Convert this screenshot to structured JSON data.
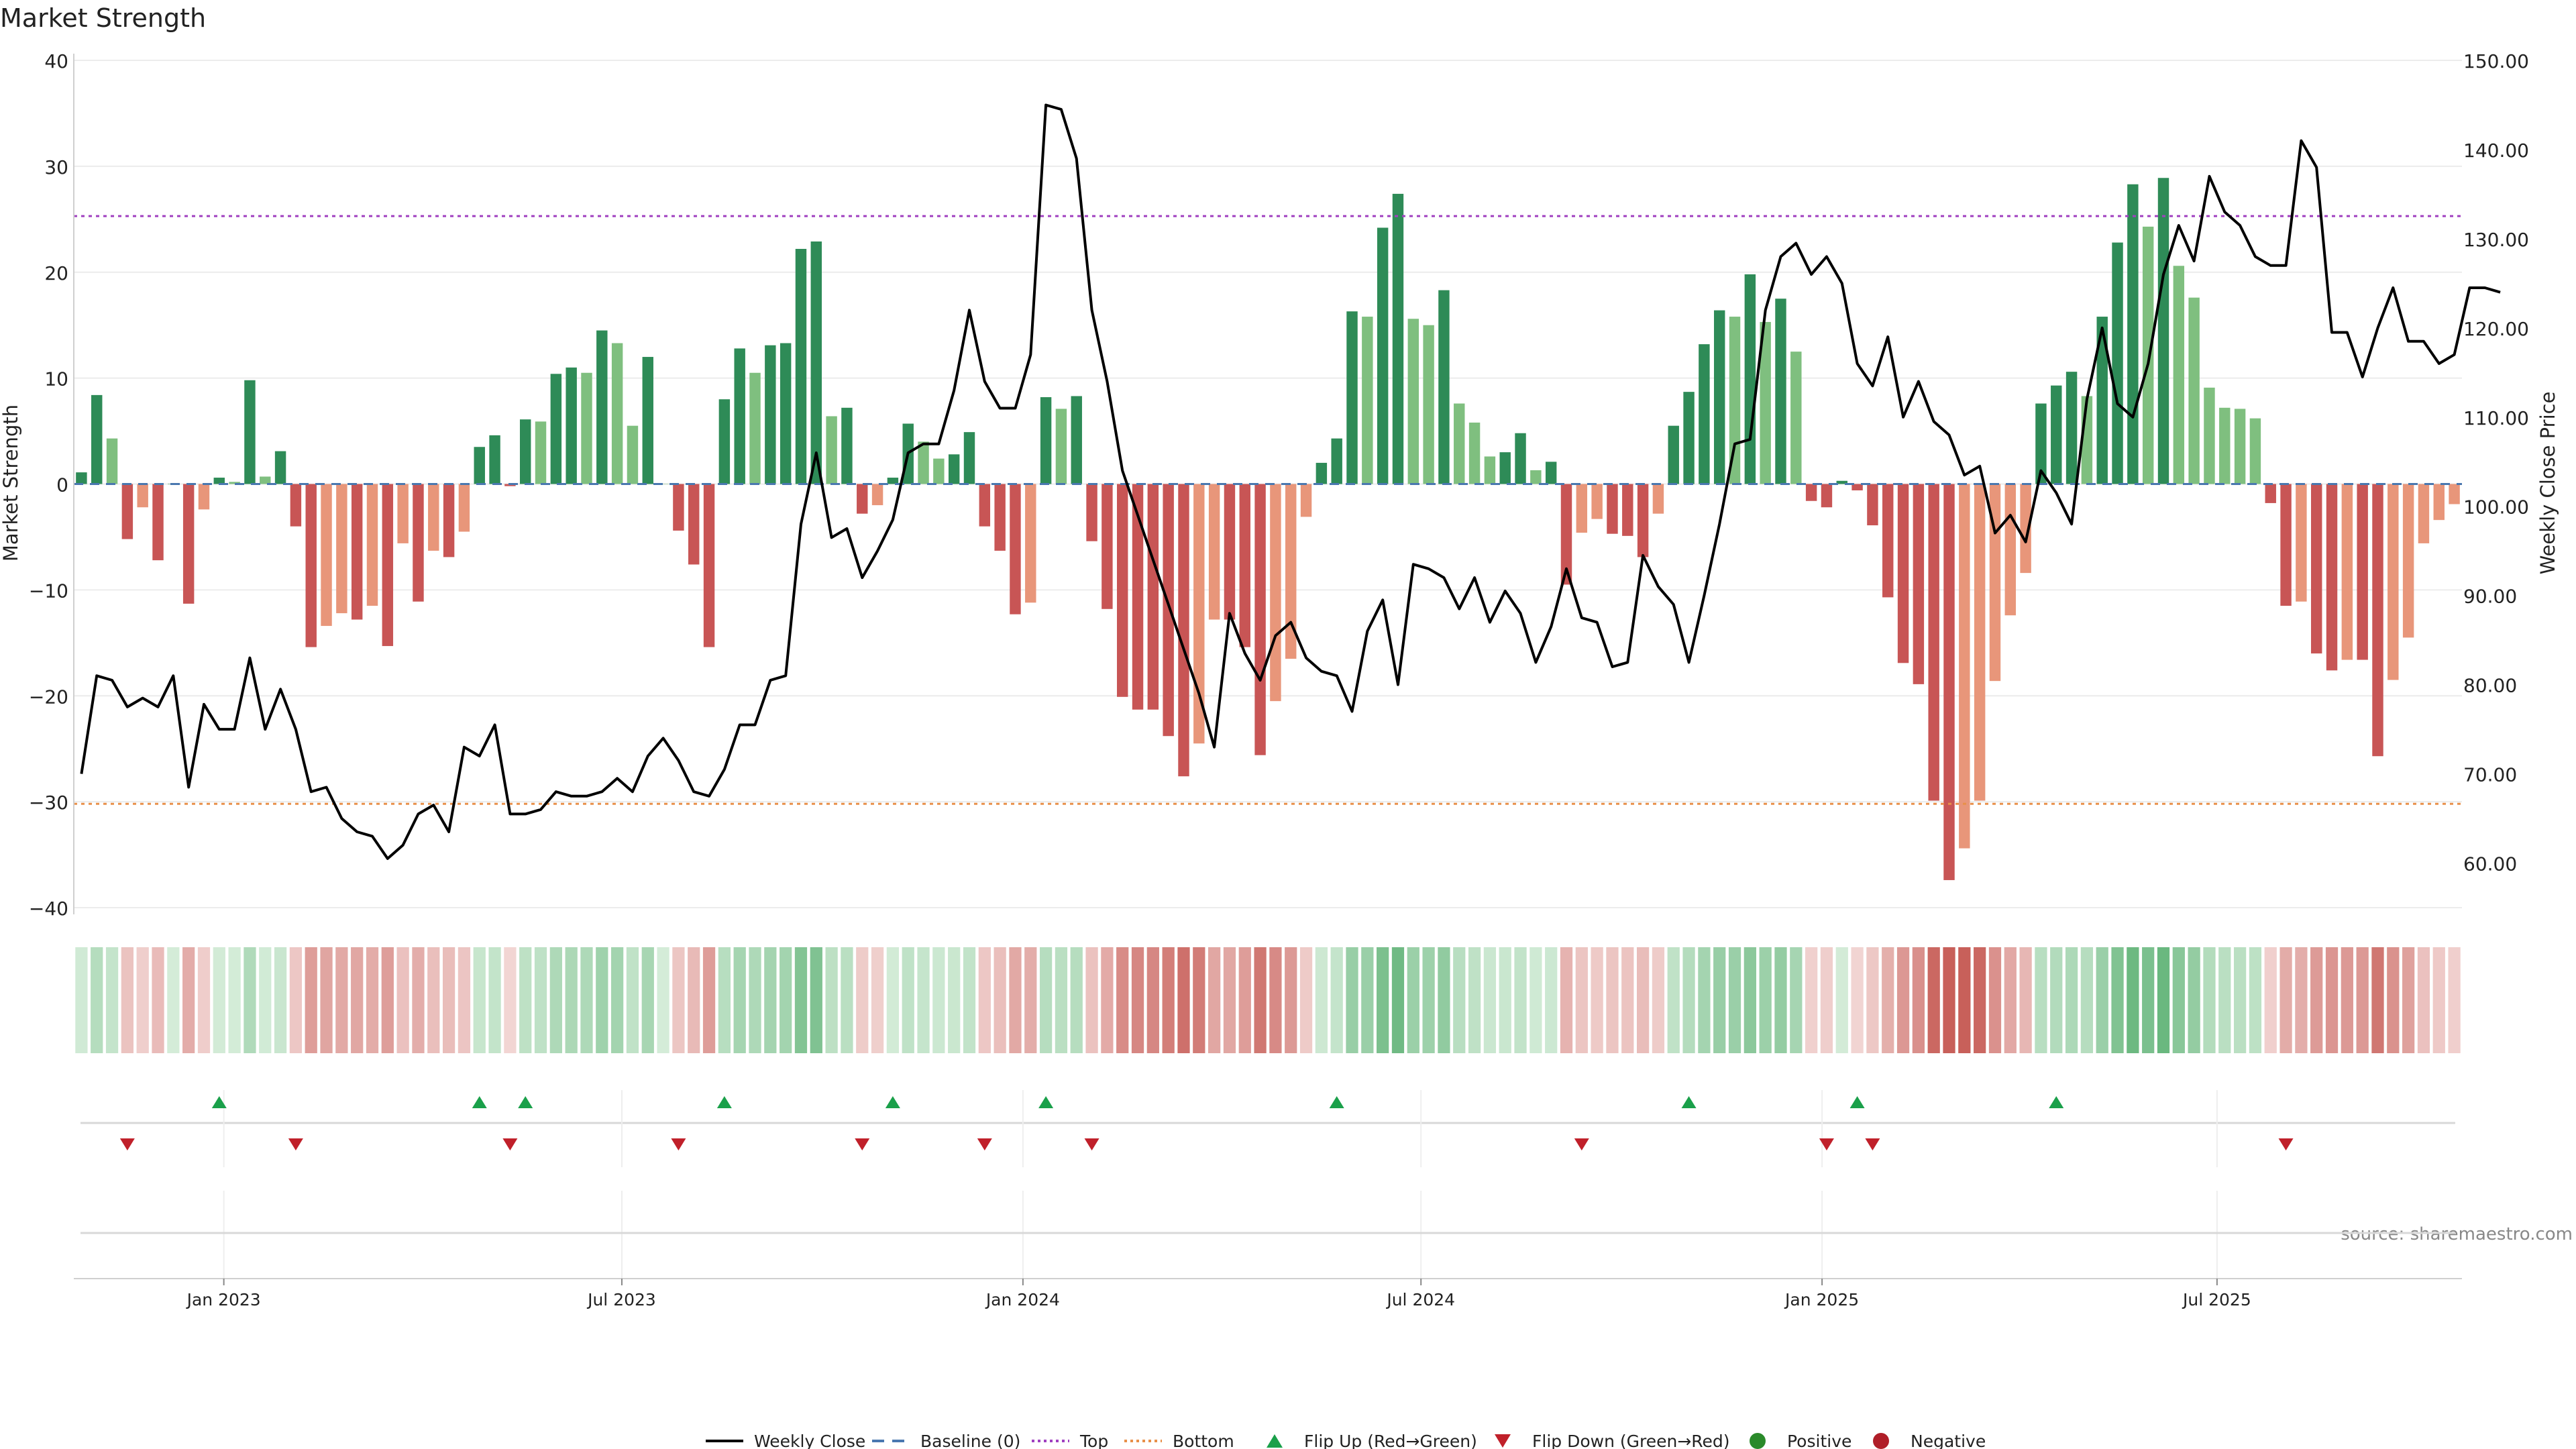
{
  "chart_data": {
    "type": "bar",
    "title": "Market Strength",
    "ylabel_left": "Market Strength",
    "ylabel_right": "Weekly Close Price",
    "ylim_left": [
      -40,
      40
    ],
    "ylim_right": [
      55,
      150
    ],
    "left_ticks": [
      "40",
      "30",
      "20",
      "10",
      "0",
      "−10",
      "−20",
      "−30",
      "−40"
    ],
    "left_tick_values": [
      40,
      30,
      20,
      10,
      0,
      -10,
      -20,
      -30,
      -40
    ],
    "right_ticks": [
      "150.00",
      "140.00",
      "130.00",
      "120.00",
      "110.00",
      "100.00",
      "90.00",
      "80.00",
      "70.00",
      "60.00"
    ],
    "right_tick_values": [
      150,
      140,
      130,
      120,
      110,
      100,
      90,
      80,
      70,
      60
    ],
    "x_labels": [
      "Jan 2023",
      "Jul 2023",
      "Jan 2024",
      "Jul 2024",
      "Jan 2025",
      "Jul 2025"
    ],
    "x_label_week_index": [
      9.3,
      35.3,
      61.5,
      87.5,
      113.7,
      139.5
    ],
    "top_level": 25.3,
    "bottom_level": -30.2,
    "strength": [
      1.1,
      8.4,
      4.3,
      -5.2,
      -2.2,
      -7.2,
      0.0,
      -11.3,
      -2.4,
      0.6,
      0.2,
      9.8,
      0.7,
      3.1,
      -4.0,
      -15.4,
      -13.4,
      -12.2,
      -12.8,
      -11.5,
      -15.3,
      -5.6,
      -11.1,
      -6.3,
      -6.9,
      -4.5,
      3.5,
      4.6,
      -0.2,
      6.1,
      5.9,
      10.4,
      11.0,
      10.5,
      14.5,
      13.3,
      5.5,
      12.0,
      0.0,
      -4.4,
      -7.6,
      -15.4,
      8.0,
      12.8,
      10.5,
      13.1,
      13.3,
      22.2,
      22.9,
      6.4,
      7.2,
      -2.8,
      -2.0,
      0.6,
      5.7,
      4.0,
      2.4,
      2.8,
      4.9,
      -4.0,
      -6.3,
      -12.3,
      -11.2,
      8.2,
      7.1,
      8.3,
      -5.4,
      -11.8,
      -20.1,
      -21.3,
      -21.3,
      -23.8,
      -27.6,
      -24.5,
      -12.8,
      -12.8,
      -15.4,
      -25.6,
      -20.5,
      -16.5,
      -3.1,
      2.0,
      4.3,
      16.3,
      15.8,
      24.2,
      27.4,
      15.6,
      15.0,
      18.3,
      7.6,
      5.8,
      2.6,
      3.0,
      4.8,
      1.3,
      2.1,
      -9.5,
      -4.6,
      -3.3,
      -4.7,
      -4.9,
      -6.9,
      -2.8,
      5.5,
      8.7,
      13.2,
      16.4,
      15.8,
      19.8,
      15.3,
      17.5,
      12.5,
      -1.6,
      -2.2,
      0.3,
      -0.6,
      -3.9,
      -10.7,
      -16.9,
      -18.9,
      -29.9,
      -37.4,
      -34.4,
      -29.9,
      -18.6,
      -12.4,
      -8.4,
      7.6,
      9.3,
      10.6,
      8.3,
      15.8,
      22.8,
      28.3,
      24.3,
      28.9,
      20.6,
      17.6,
      9.1,
      7.2,
      7.1,
      6.2,
      -1.8,
      -11.5,
      -11.1,
      -16.0,
      -17.6,
      -16.6,
      -16.6,
      -25.7,
      -18.5,
      -14.5,
      -5.6,
      -3.4,
      -1.9
    ],
    "weekly_close": [
      70.0,
      81.0,
      80.5,
      77.5,
      78.5,
      77.5,
      81.0,
      68.5,
      77.8,
      75.0,
      75.0,
      83.0,
      75.0,
      79.5,
      75.0,
      68.0,
      68.5,
      65.0,
      63.5,
      63.0,
      60.5,
      62.0,
      65.5,
      66.5,
      63.5,
      73.0,
      72.0,
      75.5,
      65.5,
      65.5,
      66.0,
      68.0,
      67.5,
      67.5,
      68.0,
      69.5,
      68.0,
      72.0,
      74.0,
      71.5,
      68.0,
      67.5,
      70.5,
      75.5,
      75.5,
      80.5,
      81.0,
      98.0,
      106.0,
      96.5,
      97.5,
      92.0,
      95.0,
      98.5,
      106.0,
      107.0,
      107.0,
      113.0,
      122.0,
      114.0,
      111.0,
      111.0,
      117.0,
      145.0,
      144.5,
      139.0,
      122.0,
      114.0,
      104.0,
      99.0,
      94.0,
      89.0,
      84.0,
      79.0,
      73.0,
      88.0,
      83.5,
      80.5,
      85.5,
      87.0,
      83.0,
      81.5,
      81.0,
      77.0,
      86.0,
      89.5,
      80.0,
      93.5,
      93.0,
      92.0,
      88.5,
      92.0,
      87.0,
      90.5,
      88.0,
      82.5,
      86.5,
      93.0,
      87.5,
      87.0,
      82.0,
      82.5,
      94.5,
      91.0,
      89.0,
      82.5,
      90.0,
      98.0,
      107.0,
      107.5,
      122.0,
      128.0,
      129.5,
      126.0,
      128.0,
      125.0,
      116.0,
      113.5,
      119.0,
      110.0,
      114.0,
      109.5,
      108.0,
      103.5,
      104.5,
      97.0,
      99.0,
      96.0,
      104.0,
      101.5,
      98.0,
      112.0,
      120.0,
      111.5,
      110.0,
      116.0,
      126.0,
      131.5,
      127.5,
      137.0,
      133.0,
      131.5,
      128.0,
      127.0,
      127.0,
      141.0,
      138.0,
      119.5,
      119.5,
      114.5,
      120.0,
      124.5,
      118.5,
      118.5,
      116.0,
      117.0,
      124.5,
      124.5,
      124.0
    ],
    "flip_up_week_index": [
      9,
      26,
      29,
      42,
      53,
      63,
      82,
      105,
      116,
      129
    ],
    "flip_down_week_index": [
      3,
      14,
      28,
      39,
      51,
      59,
      66,
      98,
      114,
      117,
      144
    ],
    "legend": [
      "Weekly Close",
      "Baseline (0)",
      "Top",
      "Bottom",
      "Flip Up (Red→Green)",
      "Flip Down (Green→Red)",
      "Positive",
      "Negative"
    ],
    "legend_position": "bottom-center",
    "source": "source: sharemaestro.com"
  },
  "colors": {
    "pos_strong": "#2e8b57",
    "pos_light": "#7fbf7f",
    "neg_strong": "#c85555",
    "neg_light": "#e8967a",
    "line": "#000000",
    "baseline": "#4a78b0",
    "top": "#a040c0",
    "bottom": "#e8904a",
    "flip_up": "#1aa04a",
    "flip_down": "#c0202a",
    "positive_dot": "#2a8a2a",
    "negative_dot": "#b01e28",
    "grid": "#ececec"
  }
}
